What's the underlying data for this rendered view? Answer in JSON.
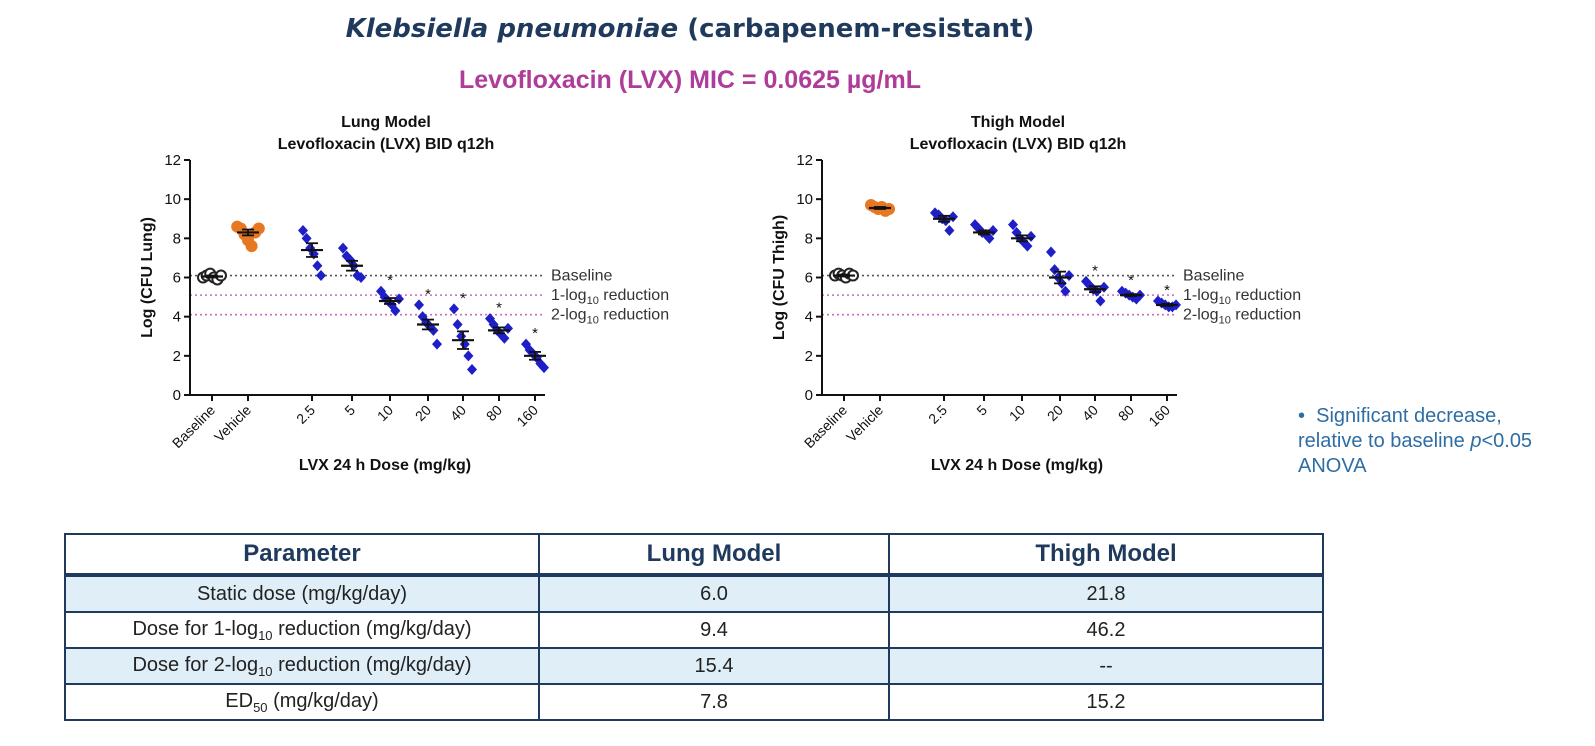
{
  "title": {
    "species": "Klebsiella pneumoniae",
    "rest": " (carbapenem-resistant)"
  },
  "subtitle": "Levofloxacin (LVX) MIC = 0.0625 µg/mL",
  "footnote": {
    "bullet": "•",
    "line1": "Significant decrease,",
    "line2_a": "relative to baseline ",
    "line2_p": "p",
    "line2_b": "<0.05",
    "line3": "ANOVA"
  },
  "chart_data": [
    {
      "type": "scatter",
      "title_lines": [
        "Lung Model",
        "Levofloxacin (LVX) BID q12h"
      ],
      "xlabel": "LVX 24 h Dose (mg/kg)",
      "ylabel": "Log (CFU Lung)",
      "ylim": [
        0,
        12
      ],
      "yticks": [
        "0",
        "2",
        "4",
        "6",
        "8",
        "10",
        "12"
      ],
      "categories": [
        "Baseline",
        "Vehicle",
        "2.5",
        "5",
        "10",
        "20",
        "40",
        "80",
        "160"
      ],
      "ref_lines": [
        {
          "label": "Baseline",
          "y": 6.1,
          "color": "#555555"
        },
        {
          "label": "1-log10 reduction",
          "y": 5.1,
          "color": "#c86ac0"
        },
        {
          "label": "2-log10 reduction",
          "y": 4.1,
          "color": "#c86ac0"
        }
      ],
      "groups": [
        {
          "category": "Baseline",
          "color": "#222222",
          "marker": "circle",
          "values": [
            6.0,
            6.1,
            6.2,
            6.0,
            5.9,
            6.1
          ],
          "mean": 6.05,
          "sem": 0.05,
          "significant": false
        },
        {
          "category": "Vehicle",
          "color": "#e87722",
          "marker": "circle",
          "values": [
            8.6,
            8.5,
            8.2,
            7.9,
            7.6,
            8.3,
            8.5
          ],
          "mean": 8.3,
          "sem": 0.15,
          "significant": false
        },
        {
          "category": "2.5",
          "color": "#1f1fc8",
          "marker": "diamond",
          "values": [
            8.4,
            8.0,
            7.5,
            7.2,
            6.6,
            6.1
          ],
          "mean": 7.4,
          "sem": 0.35,
          "significant": false
        },
        {
          "category": "5",
          "color": "#1f1fc8",
          "marker": "diamond",
          "values": [
            7.5,
            7.1,
            6.9,
            6.6,
            6.1,
            6.0
          ],
          "mean": 6.6,
          "sem": 0.25,
          "significant": false
        },
        {
          "category": "10",
          "color": "#1f1fc8",
          "marker": "diamond",
          "values": [
            5.3,
            5.0,
            4.8,
            4.6,
            4.3,
            4.9
          ],
          "mean": 4.8,
          "sem": 0.15,
          "significant": true
        },
        {
          "category": "20",
          "color": "#1f1fc8",
          "marker": "diamond",
          "values": [
            4.6,
            4.0,
            3.7,
            3.5,
            3.3,
            2.6
          ],
          "mean": 3.6,
          "sem": 0.25,
          "significant": true
        },
        {
          "category": "40",
          "color": "#1f1fc8",
          "marker": "diamond",
          "values": [
            4.4,
            3.6,
            3.0,
            2.6,
            2.0,
            1.3
          ],
          "mean": 2.8,
          "sem": 0.45,
          "significant": true
        },
        {
          "category": "80",
          "color": "#1f1fc8",
          "marker": "diamond",
          "values": [
            3.9,
            3.6,
            3.3,
            3.1,
            2.9,
            3.4
          ],
          "mean": 3.3,
          "sem": 0.15,
          "significant": true
        },
        {
          "category": "160",
          "color": "#1f1fc8",
          "marker": "diamond",
          "values": [
            2.6,
            2.3,
            2.1,
            1.9,
            1.6,
            1.4
          ],
          "mean": 2.0,
          "sem": 0.2,
          "significant": true
        }
      ]
    },
    {
      "type": "scatter",
      "title_lines": [
        "Thigh Model",
        "Levofloxacin (LVX) BID q12h"
      ],
      "xlabel": "LVX 24 h Dose (mg/kg)",
      "ylabel": "Log (CFU Thigh)",
      "ylim": [
        0,
        12
      ],
      "yticks": [
        "0",
        "2",
        "4",
        "6",
        "8",
        "10",
        "12"
      ],
      "categories": [
        "Baseline",
        "Vehicle",
        "2.5",
        "5",
        "10",
        "20",
        "40",
        "80",
        "160"
      ],
      "ref_lines": [
        {
          "label": "Baseline",
          "y": 6.1,
          "color": "#555555"
        },
        {
          "label": "1-log10 reduction",
          "y": 5.1,
          "color": "#c86ac0"
        },
        {
          "label": "2-log10 reduction",
          "y": 4.1,
          "color": "#c86ac0"
        }
      ],
      "groups": [
        {
          "category": "Baseline",
          "color": "#222222",
          "marker": "circle",
          "values": [
            6.1,
            6.2,
            6.1,
            6.0,
            6.2,
            6.1
          ],
          "mean": 6.1,
          "sem": 0.05,
          "significant": false
        },
        {
          "category": "Vehicle",
          "color": "#e87722",
          "marker": "circle",
          "values": [
            9.7,
            9.6,
            9.5,
            9.6,
            9.4,
            9.5
          ],
          "mean": 9.55,
          "sem": 0.05,
          "significant": false
        },
        {
          "category": "2.5",
          "color": "#1f1fc8",
          "marker": "diamond",
          "values": [
            9.3,
            9.2,
            9.0,
            8.9,
            8.4,
            9.1
          ],
          "mean": 9.0,
          "sem": 0.15,
          "significant": false
        },
        {
          "category": "5",
          "color": "#1f1fc8",
          "marker": "diamond",
          "values": [
            8.7,
            8.5,
            8.3,
            8.2,
            8.0,
            8.4
          ],
          "mean": 8.3,
          "sem": 0.1,
          "significant": false
        },
        {
          "category": "10",
          "color": "#1f1fc8",
          "marker": "diamond",
          "values": [
            8.7,
            8.3,
            8.0,
            7.8,
            7.6,
            8.1
          ],
          "mean": 8.0,
          "sem": 0.15,
          "significant": false
        },
        {
          "category": "20",
          "color": "#1f1fc8",
          "marker": "diamond",
          "values": [
            7.3,
            6.4,
            6.0,
            5.7,
            5.3,
            6.1
          ],
          "mean": 6.0,
          "sem": 0.3,
          "significant": false
        },
        {
          "category": "40",
          "color": "#1f1fc8",
          "marker": "diamond",
          "values": [
            5.8,
            5.6,
            5.4,
            5.3,
            4.8,
            5.5
          ],
          "mean": 5.4,
          "sem": 0.15,
          "significant": true
        },
        {
          "category": "80",
          "color": "#1f1fc8",
          "marker": "diamond",
          "values": [
            5.3,
            5.2,
            5.1,
            5.0,
            4.9,
            5.1
          ],
          "mean": 5.1,
          "sem": 0.05,
          "significant": true
        },
        {
          "category": "160",
          "color": "#1f1fc8",
          "marker": "diamond",
          "values": [
            4.8,
            4.7,
            4.6,
            4.5,
            4.5,
            4.6
          ],
          "mean": 4.6,
          "sem": 0.05,
          "significant": true
        }
      ]
    }
  ],
  "table": {
    "headers": [
      "Parameter",
      "Lung Model",
      "Thigh Model"
    ],
    "rows": [
      {
        "param_a": "Static dose (mg/kg/day)",
        "param_sub": "",
        "param_b": "",
        "lung": "6.0",
        "thigh": "21.8"
      },
      {
        "param_a": "Dose for 1-log",
        "param_sub": "10",
        "param_b": " reduction (mg/kg/day)",
        "lung": "9.4",
        "thigh": "46.2"
      },
      {
        "param_a": "Dose for 2-log",
        "param_sub": "10",
        "param_b": " reduction  (mg/kg/day)",
        "lung": "15.4",
        "thigh": "--"
      },
      {
        "param_a": "ED",
        "param_sub": "50",
        "param_b": " (mg/kg/day)",
        "lung": "7.8",
        "thigh": "15.2"
      }
    ]
  }
}
